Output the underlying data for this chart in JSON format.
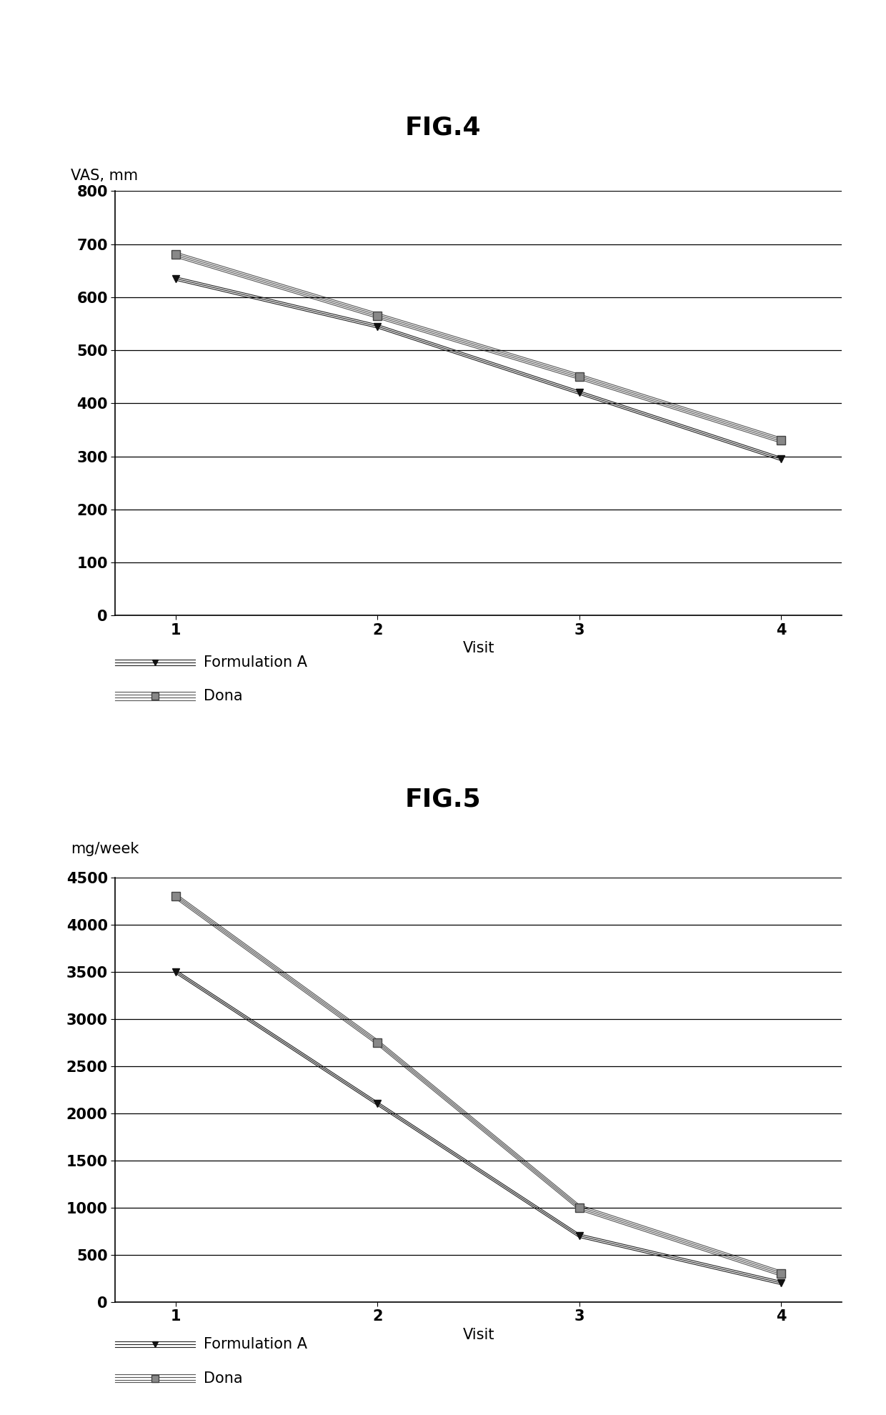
{
  "fig4": {
    "title": "FIG.4",
    "ylabel": "VAS, mm",
    "xlabel": "Visit",
    "x": [
      1,
      2,
      3,
      4
    ],
    "formA": [
      635,
      545,
      420,
      295
    ],
    "dona": [
      680,
      565,
      450,
      330
    ],
    "ylim": [
      0,
      800
    ],
    "yticks": [
      0,
      100,
      200,
      300,
      400,
      500,
      600,
      700,
      800
    ],
    "xticks": [
      1,
      2,
      3,
      4
    ]
  },
  "fig5": {
    "title": "FIG.5",
    "ylabel": "mg/week",
    "xlabel": "Visit",
    "x": [
      1,
      2,
      3,
      4
    ],
    "formA": [
      3500,
      2100,
      700,
      200
    ],
    "dona": [
      4300,
      2750,
      1000,
      300
    ],
    "ylim": [
      0,
      4500
    ],
    "yticks": [
      0,
      500,
      1000,
      1500,
      2000,
      2500,
      3000,
      3500,
      4000,
      4500
    ],
    "xticks": [
      1,
      2,
      3,
      4
    ]
  },
  "background_color": "#ffffff",
  "legend_formA": "Formulation A",
  "legend_dona": "Dona",
  "title_fontsize": 26,
  "ylabel_fontsize": 15,
  "xlabel_fontsize": 15,
  "tick_fontsize": 15,
  "legend_fontsize": 15
}
